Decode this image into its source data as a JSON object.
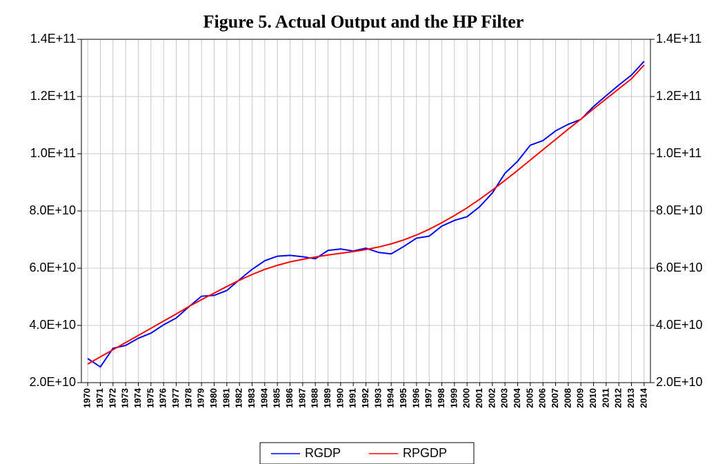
{
  "chart_data": {
    "type": "line",
    "title": "Figure 5. Actual Output and the HP Filter",
    "categories": [
      "1970",
      "1971",
      "1972",
      "1973",
      "1974",
      "1975",
      "1976",
      "1977",
      "1978",
      "1979",
      "1980",
      "1981",
      "1982",
      "1983",
      "1984",
      "1985",
      "1986",
      "1987",
      "1988",
      "1989",
      "1990",
      "1991",
      "1992",
      "1993",
      "1994",
      "1995",
      "1996",
      "1997",
      "1998",
      "1999",
      "2000",
      "2001",
      "2002",
      "2003",
      "2004",
      "2005",
      "2006",
      "2007",
      "2008",
      "2009",
      "2010",
      "2011",
      "2012",
      "2013",
      "2014"
    ],
    "series": [
      {
        "name": "RGDP",
        "color": "#0000ff",
        "values": [
          28400000000.0,
          25500000000.0,
          32000000000.0,
          33000000000.0,
          35500000000.0,
          37300000000.0,
          40200000000.0,
          42600000000.0,
          46500000000.0,
          50200000000.0,
          50500000000.0,
          52200000000.0,
          56000000000.0,
          59600000000.0,
          62600000000.0,
          64200000000.0,
          64500000000.0,
          64000000000.0,
          63300000000.0,
          66200000000.0,
          66700000000.0,
          66000000000.0,
          67000000000.0,
          65500000000.0,
          65000000000.0,
          67600000000.0,
          70500000000.0,
          71200000000.0,
          74700000000.0,
          76700000000.0,
          78000000000.0,
          81500000000.0,
          86300000000.0,
          93200000000.0,
          97400000000.0,
          103000000000.0,
          104600000000.0,
          108000000000.0,
          110300000000.0,
          112000000000.0,
          116500000000.0,
          120300000000.0,
          124000000000.0,
          127500000000.0,
          132300000000.0
        ]
      },
      {
        "name": "RPGDP",
        "color": "#ff0000",
        "values": [
          26500000000.0,
          29000000000.0,
          31500000000.0,
          34000000000.0,
          36500000000.0,
          39000000000.0,
          41500000000.0,
          44000000000.0,
          46600000000.0,
          49000000000.0,
          51300000000.0,
          53600000000.0,
          55800000000.0,
          57800000000.0,
          59600000000.0,
          61000000000.0,
          62200000000.0,
          63100000000.0,
          63900000000.0,
          64600000000.0,
          65200000000.0,
          65800000000.0,
          66500000000.0,
          67400000000.0,
          68500000000.0,
          69900000000.0,
          71600000000.0,
          73600000000.0,
          75900000000.0,
          78400000000.0,
          81100000000.0,
          84100000000.0,
          87300000000.0,
          90700000000.0,
          94200000000.0,
          97800000000.0,
          101400000000.0,
          105000000000.0,
          108600000000.0,
          112100000000.0,
          115700000000.0,
          119200000000.0,
          122700000000.0,
          126200000000.0,
          131000000000.0
        ]
      }
    ],
    "ylim": [
      20000000000.0,
      140000000000.0
    ],
    "yticks": [
      {
        "value": 20000000000.0,
        "label": "2.0E+10"
      },
      {
        "value": 40000000000.0,
        "label": "4.0E+10"
      },
      {
        "value": 60000000000.0,
        "label": "6.0E+10"
      },
      {
        "value": 80000000000.0,
        "label": "8.0E+10"
      },
      {
        "value": 100000000000.0,
        "label": "1.0E+11"
      },
      {
        "value": 120000000000.0,
        "label": "1.2E+11"
      },
      {
        "value": 140000000000.0,
        "label": "1.4E+11"
      }
    ],
    "y2lim": [
      20000000000.0,
      140000000000.0
    ],
    "y2ticks": [
      {
        "value": 20000000000.0,
        "label": "2.0E+10"
      },
      {
        "value": 40000000000.0,
        "label": "4.0E+10"
      },
      {
        "value": 60000000000.0,
        "label": "6.0E+10"
      },
      {
        "value": 80000000000.0,
        "label": "8.0E+10"
      },
      {
        "value": 100000000000.0,
        "label": "1.0E+11"
      },
      {
        "value": 120000000000.0,
        "label": "1.2E+11"
      },
      {
        "value": 140000000000.0,
        "label": "1.4E+11"
      }
    ],
    "grid": true,
    "legend": "bottom"
  }
}
